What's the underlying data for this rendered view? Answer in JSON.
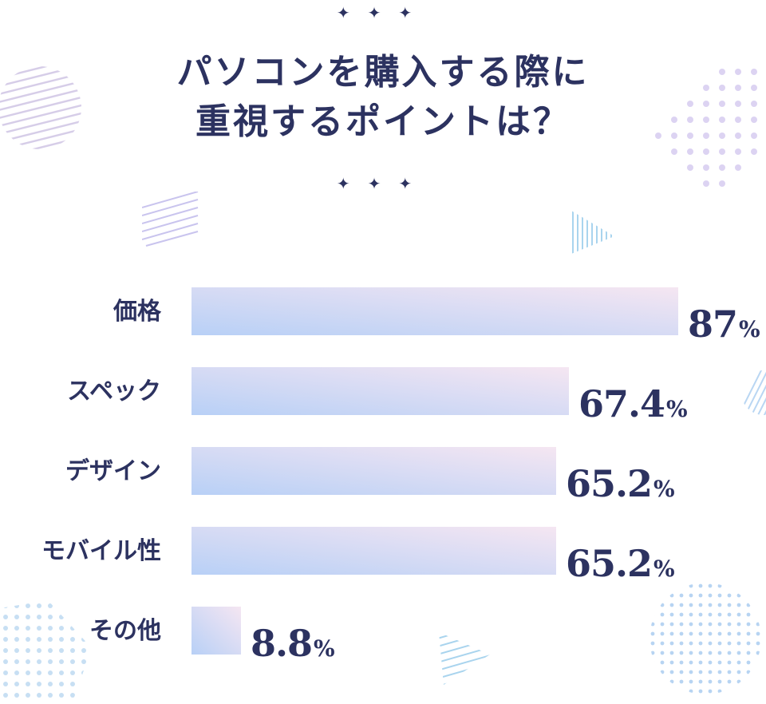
{
  "title_lines": [
    "パソコンを購入する際に",
    "重視するポイントは？"
  ],
  "stars": "✦✦✦",
  "colors": {
    "text": "#2c3260",
    "bar_start": "#b8d0f6",
    "bar_end": "#f5e6f2"
  },
  "chart_data": {
    "type": "bar",
    "orientation": "horizontal",
    "categories": [
      "価格",
      "スペック",
      "デザイン",
      "モバイル性",
      "その他"
    ],
    "values": [
      87,
      67.4,
      65.2,
      65.2,
      8.8
    ],
    "value_labels": [
      "87",
      "67.4",
      "65.2",
      "65.2",
      "8.8"
    ],
    "unit": "%",
    "title": "パソコンを購入する際に重視するポイントは？",
    "xlabel": "",
    "ylabel": "",
    "xlim": [
      0,
      87
    ],
    "grid": false
  }
}
